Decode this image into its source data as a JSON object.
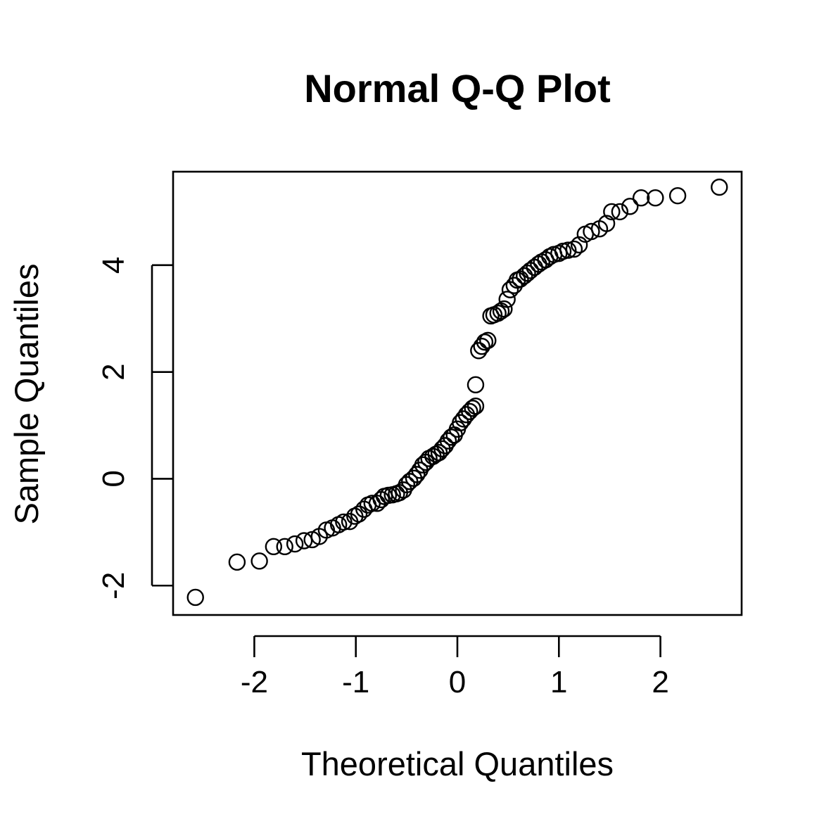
{
  "chart_data": {
    "type": "scatter",
    "title": "Normal Q-Q Plot",
    "xlabel": "Theoretical Quantiles",
    "ylabel": "Sample Quantiles",
    "xlim": [
      -2.8,
      2.8
    ],
    "ylim": [
      -2.55,
      5.75
    ],
    "grid": false,
    "legend": "none",
    "colors": {
      "points": "#000000",
      "axes": "#000000",
      "background": "#ffffff"
    },
    "x_ticks": [
      {
        "value": -2,
        "label": "-2"
      },
      {
        "value": -1,
        "label": "-1"
      },
      {
        "value": 0,
        "label": "0"
      },
      {
        "value": 1,
        "label": "1"
      },
      {
        "value": 2,
        "label": "2"
      }
    ],
    "y_ticks": [
      {
        "value": -2,
        "label": "-2"
      },
      {
        "value": 0,
        "label": "0"
      },
      {
        "value": 2,
        "label": "2"
      },
      {
        "value": 4,
        "label": "4"
      }
    ],
    "points": [
      [
        -2.58,
        -2.22
      ],
      [
        -2.17,
        -1.56
      ],
      [
        -1.95,
        -1.54
      ],
      [
        -1.81,
        -1.27
      ],
      [
        -1.7,
        -1.27
      ],
      [
        -1.6,
        -1.22
      ],
      [
        -1.51,
        -1.16
      ],
      [
        -1.43,
        -1.14
      ],
      [
        -1.36,
        -1.08
      ],
      [
        -1.29,
        -0.96
      ],
      [
        -1.23,
        -0.92
      ],
      [
        -1.17,
        -0.86
      ],
      [
        -1.12,
        -0.81
      ],
      [
        -1.06,
        -0.8
      ],
      [
        -1.01,
        -0.7
      ],
      [
        -0.97,
        -0.66
      ],
      [
        -0.92,
        -0.57
      ],
      [
        -0.88,
        -0.49
      ],
      [
        -0.84,
        -0.46
      ],
      [
        -0.79,
        -0.46
      ],
      [
        -0.75,
        -0.39
      ],
      [
        -0.72,
        -0.33
      ],
      [
        -0.68,
        -0.31
      ],
      [
        -0.64,
        -0.3
      ],
      [
        -0.6,
        -0.28
      ],
      [
        -0.57,
        -0.26
      ],
      [
        -0.53,
        -0.21
      ],
      [
        -0.5,
        -0.11
      ],
      [
        -0.47,
        -0.05
      ],
      [
        -0.43,
        0.01
      ],
      [
        -0.4,
        0.08
      ],
      [
        -0.37,
        0.16
      ],
      [
        -0.34,
        0.26
      ],
      [
        -0.31,
        0.31
      ],
      [
        -0.28,
        0.38
      ],
      [
        -0.24,
        0.42
      ],
      [
        -0.21,
        0.46
      ],
      [
        -0.18,
        0.49
      ],
      [
        -0.15,
        0.56
      ],
      [
        -0.12,
        0.62
      ],
      [
        -0.09,
        0.71
      ],
      [
        -0.06,
        0.78
      ],
      [
        -0.03,
        0.82
      ],
      [
        0.0,
        0.93
      ],
      [
        0.03,
        1.05
      ],
      [
        0.06,
        1.12
      ],
      [
        0.09,
        1.2
      ],
      [
        0.12,
        1.26
      ],
      [
        0.15,
        1.32
      ],
      [
        0.18,
        1.36
      ],
      [
        0.18,
        1.76
      ],
      [
        0.21,
        2.4
      ],
      [
        0.24,
        2.48
      ],
      [
        0.27,
        2.56
      ],
      [
        0.3,
        2.59
      ],
      [
        0.33,
        3.05
      ],
      [
        0.36,
        3.07
      ],
      [
        0.4,
        3.1
      ],
      [
        0.43,
        3.14
      ],
      [
        0.46,
        3.18
      ],
      [
        0.49,
        3.36
      ],
      [
        0.52,
        3.54
      ],
      [
        0.56,
        3.62
      ],
      [
        0.59,
        3.72
      ],
      [
        0.62,
        3.74
      ],
      [
        0.66,
        3.8
      ],
      [
        0.69,
        3.85
      ],
      [
        0.72,
        3.9
      ],
      [
        0.76,
        3.96
      ],
      [
        0.8,
        4.02
      ],
      [
        0.83,
        4.06
      ],
      [
        0.87,
        4.1
      ],
      [
        0.91,
        4.16
      ],
      [
        0.95,
        4.2
      ],
      [
        1.0,
        4.22
      ],
      [
        1.04,
        4.26
      ],
      [
        1.09,
        4.28
      ],
      [
        1.15,
        4.3
      ],
      [
        1.2,
        4.38
      ],
      [
        1.26,
        4.58
      ],
      [
        1.32,
        4.63
      ],
      [
        1.4,
        4.68
      ],
      [
        1.47,
        4.78
      ],
      [
        1.52,
        5.0
      ],
      [
        1.6,
        5.0
      ],
      [
        1.7,
        5.1
      ],
      [
        1.81,
        5.26
      ],
      [
        1.95,
        5.26
      ],
      [
        2.17,
        5.3
      ],
      [
        2.58,
        5.46
      ]
    ]
  }
}
